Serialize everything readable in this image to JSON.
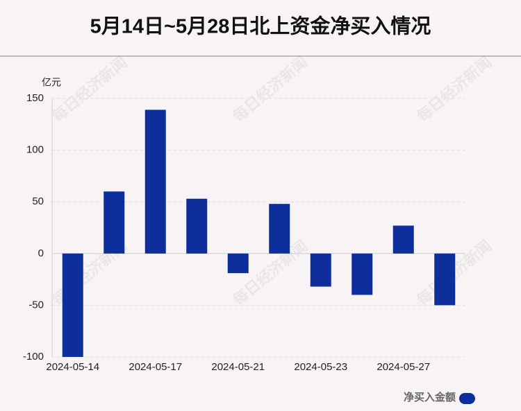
{
  "chart_data": {
    "type": "bar",
    "title": "5月14日~5月28日北上资金净买入情况",
    "y_axis_label": "亿元",
    "watermark": "每日经济新闻",
    "categories": [
      "2024-05-14",
      null,
      "2024-05-17",
      null,
      "2024-05-21",
      null,
      "2024-05-23",
      null,
      "2024-05-27",
      null
    ],
    "series": [
      {
        "name": "净买入金额",
        "color": "#0e2f9b",
        "values": [
          -100,
          60,
          139,
          53,
          -19,
          48,
          -32,
          -40,
          27,
          -50
        ]
      }
    ],
    "ylim": [
      -100,
      150
    ],
    "yticks": [
      -100,
      -50,
      0,
      50,
      100,
      150
    ],
    "grid": true
  }
}
